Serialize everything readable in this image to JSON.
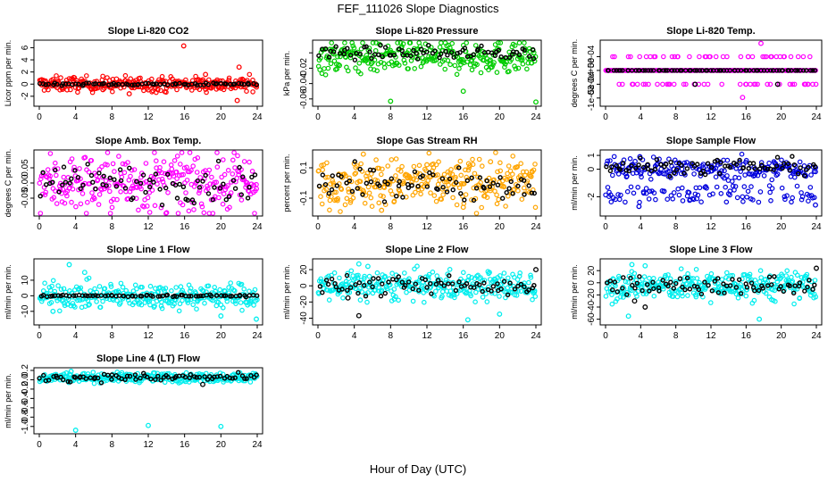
{
  "figure": {
    "title": "FEF_111026  Slope Diagnostics",
    "xlabel": "Hour of Day (UTC)"
  },
  "chart_data": [
    {
      "type": "scatter",
      "title": "Slope Li-820 CO2",
      "ylabel": "Licor ppm per min.",
      "xlim": [
        0,
        24
      ],
      "xticks": [
        0,
        4,
        8,
        12,
        16,
        20,
        24
      ],
      "ylim": [
        -3.2,
        6.8
      ],
      "yticks": [
        -2,
        0,
        2,
        4,
        6
      ],
      "grid": false,
      "series": [
        {
          "color": "#ff0000",
          "marker": "circle-open",
          "center": 0.0,
          "spread": 0.6,
          "outliers": [
            [
              15.9,
              6.3
            ],
            [
              22.0,
              2.8
            ],
            [
              18.3,
              1.6
            ],
            [
              9.9,
              -1.6
            ],
            [
              21.8,
              -2.7
            ],
            [
              7.0,
              -0.9
            ],
            [
              3.8,
              1.1
            ]
          ]
        },
        {
          "color": "#000000",
          "marker": "circle-open",
          "center": 0.0,
          "spread": 0.1,
          "outliers": []
        }
      ]
    },
    {
      "type": "scatter",
      "title": "Slope Li-820 Pressure",
      "ylabel": "kPa per min.",
      "xlim": [
        0,
        24
      ],
      "xticks": [
        0,
        4,
        8,
        12,
        16,
        20,
        24
      ],
      "ylim": [
        -0.066,
        0.013
      ],
      "yticks": [
        -0.06,
        -0.04,
        -0.02,
        0.0
      ],
      "yticklabels": [
        "-0.06",
        "-0.04",
        "-0.02",
        ""
      ],
      "grid": false,
      "series": [
        {
          "color": "#00cc00",
          "marker": "circle-open",
          "center": -0.005,
          "spread": 0.011,
          "outliers": [
            [
              8.0,
              -0.063
            ],
            [
              16.0,
              -0.05
            ],
            [
              24.0,
              -0.064
            ]
          ]
        },
        {
          "color": "#000000",
          "marker": "circle-open",
          "center": 0.0,
          "spread": 0.004,
          "outliers": []
        }
      ]
    },
    {
      "type": "scatter",
      "title": "Slope Li-820 Temp.",
      "ylabel": "degrees C per min.",
      "xlim": [
        0,
        24
      ],
      "xticks": [
        0,
        4,
        8,
        12,
        16,
        20,
        24
      ],
      "ylim": [
        -0.0012,
        0.001
      ],
      "yticks": [
        -0.001,
        -0.0005,
        0.0,
        0.0005
      ],
      "yticklabels": [
        "-1e-03",
        "-5e-04",
        "0e+00",
        "5e-04"
      ],
      "grid": false,
      "series": [
        {
          "color": "#ff00ff",
          "marker": "circle-open",
          "center": 0.0,
          "spread": 0.0,
          "levels": [
            -0.0005,
            0.0,
            0.0005
          ],
          "outliers": [
            [
              17.7,
              0.00098
            ],
            [
              15.6,
              -0.00098
            ]
          ]
        },
        {
          "color": "#000000",
          "marker": "circle-open",
          "center": 0.0,
          "spread": 0.0,
          "levels": [
            0.0
          ],
          "outliers": [
            [
              10.2,
              -0.0005
            ],
            [
              19.6,
              -0.0005
            ]
          ]
        }
      ]
    },
    {
      "type": "scatter",
      "title": "Slope Amb. Box Temp.",
      "ylabel": "degrees C per min.",
      "xlim": [
        0,
        24
      ],
      "xticks": [
        0,
        4,
        8,
        12,
        16,
        20,
        24
      ],
      "ylim": [
        -0.1,
        0.1
      ],
      "yticks": [
        -0.05,
        0.0,
        0.05
      ],
      "yticklabels": [
        "-0.05",
        "0.00",
        "0.05"
      ],
      "grid": false,
      "series": [
        {
          "color": "#ff00ff",
          "marker": "circle-open",
          "center": 0.0,
          "spread": 0.05,
          "outliers": []
        },
        {
          "color": "#000000",
          "marker": "circle-open",
          "center": 0.0,
          "spread": 0.03,
          "outliers": []
        }
      ]
    },
    {
      "type": "scatter",
      "title": "Slope Gas Stream RH",
      "ylabel": "percent per min.",
      "xlim": [
        0,
        24
      ],
      "xticks": [
        0,
        4,
        8,
        12,
        16,
        20,
        24
      ],
      "ylim": [
        -0.2,
        0.2
      ],
      "yticks": [
        -0.1,
        0.1
      ],
      "yticklabels": [
        "-0.1",
        "0.1"
      ],
      "grid": false,
      "series": [
        {
          "color": "#ffa500",
          "marker": "circle-open",
          "center": 0.0,
          "spread": 0.08,
          "outliers": [
            [
              5.0,
              0.19
            ],
            [
              7.0,
              -0.18
            ],
            [
              16.0,
              -0.16
            ],
            [
              19.0,
              0.14
            ],
            [
              12.0,
              0.12
            ]
          ]
        },
        {
          "color": "#000000",
          "marker": "circle-open",
          "center": 0.0,
          "spread": 0.05,
          "outliers": []
        }
      ]
    },
    {
      "type": "scatter",
      "title": "Slope Sample Flow",
      "ylabel": "ml/min per min.",
      "xlim": [
        0,
        24
      ],
      "xticks": [
        0,
        4,
        8,
        12,
        16,
        20,
        24
      ],
      "ylim": [
        -3.2,
        1.2
      ],
      "yticks": [
        -2,
        0,
        1
      ],
      "grid": false,
      "series": [
        {
          "color": "#0000dd",
          "marker": "circle-open",
          "center": 0.0,
          "spread": 0.4,
          "band": [
            -2.4,
            -1.2
          ],
          "outliers": [
            [
              3.9,
              0.9
            ],
            [
              23.9,
              -2.6
            ],
            [
              3.8,
              -2.7
            ]
          ]
        },
        {
          "color": "#000000",
          "marker": "circle-open",
          "center": 0.2,
          "spread": 0.3,
          "outliers": []
        }
      ]
    },
    {
      "type": "scatter",
      "title": "Slope Line 1 Flow",
      "ylabel": "ml/min per min.",
      "xlim": [
        0,
        24
      ],
      "xticks": [
        0,
        4,
        8,
        12,
        16,
        20,
        24
      ],
      "ylim": [
        -17,
        22
      ],
      "yticks": [
        -10,
        0,
        10
      ],
      "grid": false,
      "series": [
        {
          "color": "#00eeee",
          "marker": "circle-open",
          "center": 0.0,
          "spread": 4.0,
          "outliers": [
            [
              3.3,
              20.0
            ],
            [
              23.9,
              -15.0
            ],
            [
              20.0,
              -13.0
            ],
            [
              1.5,
              -10.0
            ],
            [
              5.0,
              15.0
            ]
          ]
        },
        {
          "color": "#000000",
          "marker": "circle-open",
          "center": 0.0,
          "spread": 0.3,
          "outliers": []
        }
      ]
    },
    {
      "type": "scatter",
      "title": "Slope Line 2 Flow",
      "ylabel": "ml/min per min.",
      "xlim": [
        0,
        24
      ],
      "xticks": [
        0,
        4,
        8,
        12,
        16,
        20,
        24
      ],
      "ylim": [
        -45,
        30
      ],
      "yticks": [
        -40,
        -20,
        0,
        20
      ],
      "grid": false,
      "series": [
        {
          "color": "#00eeee",
          "marker": "circle-open",
          "center": 0.0,
          "spread": 9.0,
          "outliers": [
            [
              4.5,
              27.0
            ],
            [
              16.5,
              -42.0
            ],
            [
              20.0,
              -35.0
            ],
            [
              5.5,
              24.0
            ]
          ]
        },
        {
          "color": "#000000",
          "marker": "circle-open",
          "center": 0.0,
          "spread": 6.0,
          "outliers": [
            [
              4.5,
              -37.0
            ],
            [
              3.3,
              -15.0
            ],
            [
              24.0,
              20.0
            ]
          ]
        }
      ]
    },
    {
      "type": "scatter",
      "title": "Slope Line 3 Flow",
      "ylabel": "ml/min per min.",
      "xlim": [
        0,
        24
      ],
      "xticks": [
        0,
        4,
        8,
        12,
        16,
        20,
        24
      ],
      "ylim": [
        -65,
        35
      ],
      "yticks": [
        -60,
        -40,
        -20,
        0,
        20
      ],
      "grid": false,
      "series": [
        {
          "color": "#00eeee",
          "marker": "circle-open",
          "center": -5.0,
          "spread": 12.0,
          "outliers": [
            [
              3.0,
              30.0
            ],
            [
              17.5,
              -60.0
            ],
            [
              2.6,
              -55.0
            ],
            [
              4.5,
              28.0
            ]
          ]
        },
        {
          "color": "#000000",
          "marker": "circle-open",
          "center": -5.0,
          "spread": 8.0,
          "outliers": [
            [
              24.0,
              24.0
            ],
            [
              3.3,
              -30.0
            ],
            [
              4.5,
              -40.0
            ]
          ]
        }
      ]
    },
    {
      "type": "scatter",
      "title": "Slope Line 4 (LT) Flow",
      "ylabel": "ml/min per min.",
      "xlim": [
        0,
        24
      ],
      "xticks": [
        0,
        4,
        8,
        12,
        16,
        20,
        24
      ],
      "ylim": [
        -1.1,
        0.2
      ],
      "yticks": [
        -1.0,
        -0.8,
        -0.6,
        -0.4,
        -0.2,
        0.0,
        0.2
      ],
      "yticklabels": [
        "-1.0",
        "-0.8",
        "-0.6",
        "-0.4",
        "-0.2",
        "0.0",
        "0.2"
      ],
      "grid": false,
      "series": [
        {
          "color": "#00eeee",
          "marker": "circle-open",
          "center": 0.05,
          "spread": 0.05,
          "outliers": [
            [
              4.0,
              -1.08
            ],
            [
              12.0,
              -0.98
            ],
            [
              20.0,
              -1.0
            ],
            [
              3.5,
              0.18
            ]
          ]
        },
        {
          "color": "#000000",
          "marker": "circle-open",
          "center": 0.05,
          "spread": 0.04,
          "outliers": [
            [
              18.0,
              -0.1
            ]
          ]
        }
      ]
    }
  ]
}
